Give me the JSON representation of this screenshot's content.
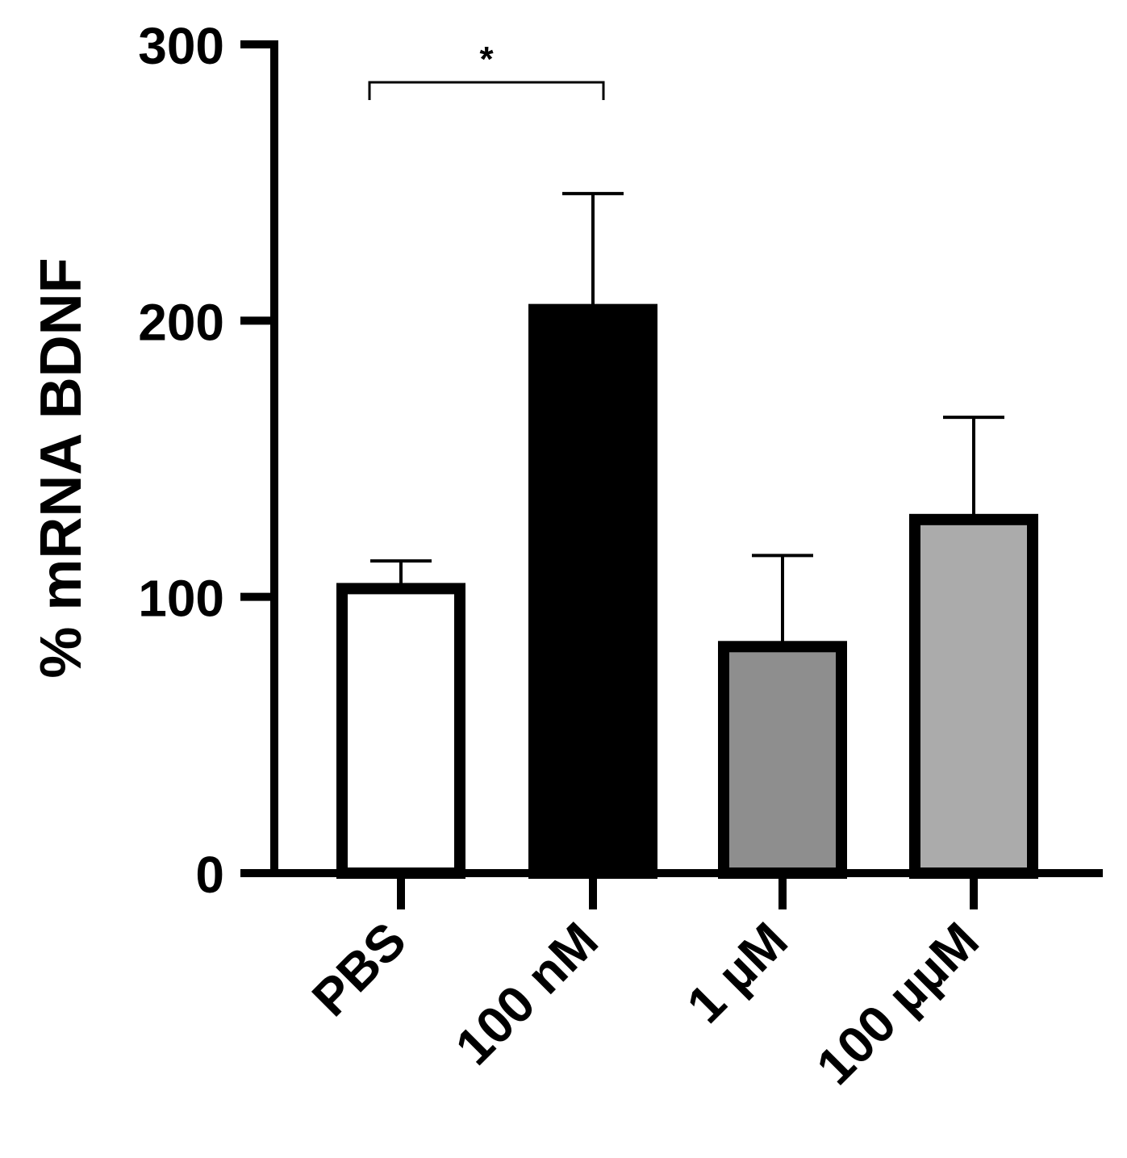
{
  "chart_data": {
    "type": "bar",
    "title": "",
    "xlabel": "",
    "ylabel": "% mRNA BDNF",
    "ylim": [
      0,
      300
    ],
    "yticks": [
      0,
      100,
      200,
      300
    ],
    "yticklabels": [
      "0",
      "100",
      "200",
      "300"
    ],
    "categories": [
      "PBS",
      "100 nM",
      "1 µM",
      "100 µµM"
    ],
    "values": [
      103,
      204,
      82,
      128
    ],
    "error_upper": [
      113,
      246,
      115,
      165
    ],
    "bar_colors": [
      "#ffffff",
      "#000000",
      "#8e8e8e",
      "#ababab"
    ],
    "significance": [
      {
        "from": 0,
        "to": 1,
        "label": "*"
      }
    ],
    "grid": false,
    "legend": "none"
  }
}
